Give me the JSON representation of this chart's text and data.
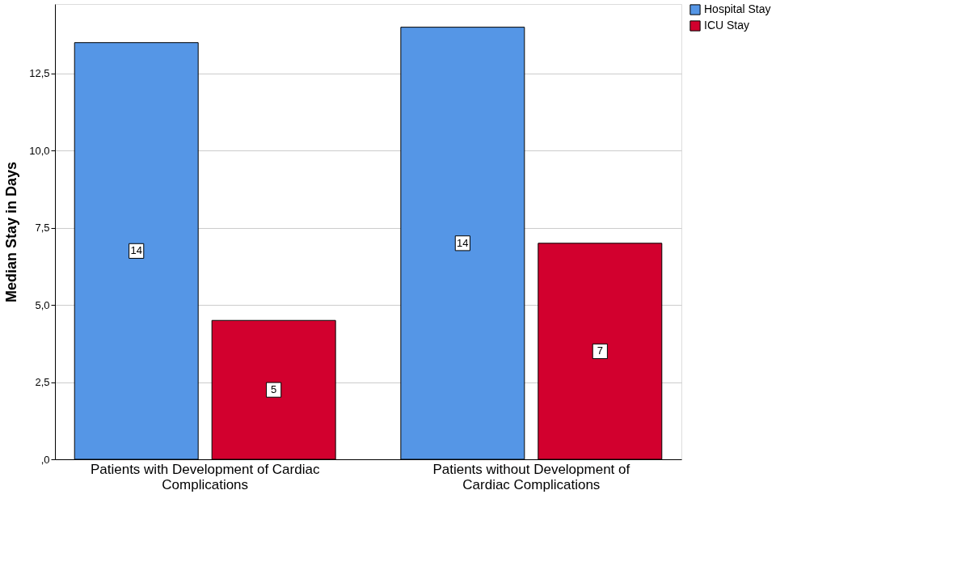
{
  "chart_data": {
    "type": "bar",
    "ylabel": "Median Stay in Days",
    "categories": [
      "Patients with Development of Cardiac Complications",
      "Patients without Development of Cardiac Complications"
    ],
    "series": [
      {
        "name": "Hospital Stay",
        "color": "#5596e6",
        "values": [
          13.5,
          14
        ],
        "value_labels": [
          "14",
          "14"
        ]
      },
      {
        "name": "ICU Stay",
        "color": "#d2002e",
        "values": [
          4.5,
          7
        ],
        "value_labels": [
          "5",
          "7"
        ]
      }
    ],
    "ylim": [
      0,
      14.75
    ],
    "yticks": [
      {
        "value": 0,
        "label": ",0"
      },
      {
        "value": 2.5,
        "label": "2,5"
      },
      {
        "value": 5,
        "label": "5,0"
      },
      {
        "value": 7.5,
        "label": "7,5"
      },
      {
        "value": 10,
        "label": "10,0"
      },
      {
        "value": 12.5,
        "label": "12,5"
      }
    ],
    "grid": "y",
    "legend": "top right"
  }
}
